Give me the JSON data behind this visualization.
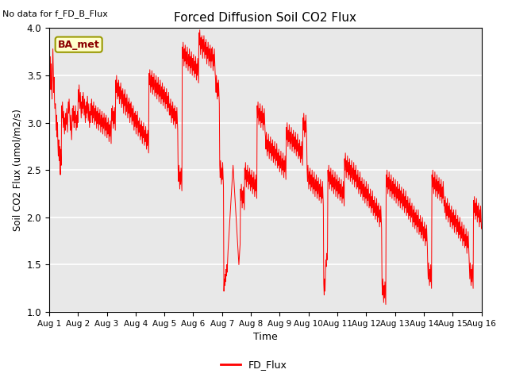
{
  "title": "Forced Diffusion Soil CO2 Flux",
  "xlabel": "Time",
  "ylabel_str": "Soil CO2 Flux (umol/m2/s)",
  "note": "No data for f_FD_B_Flux",
  "legend_label": "FD_Flux",
  "legend_box_label": "BA_met",
  "ylim": [
    1.0,
    4.0
  ],
  "line_color": "#FF0000",
  "background_color": "#E8E8E8",
  "x_tick_labels": [
    "Aug 1",
    "Aug 2",
    "Aug 3",
    "Aug 4",
    "Aug 5",
    "Aug 6",
    "Aug 7",
    "Aug 8",
    "Aug 9",
    "Aug 10",
    "Aug 11",
    "Aug 12",
    "Aug 13",
    "Aug 14",
    "Aug 15",
    "Aug 16"
  ],
  "y_values": [
    3.72,
    3.45,
    3.7,
    3.55,
    3.35,
    3.62,
    3.4,
    3.25,
    3.55,
    3.78,
    3.55,
    3.32,
    3.48,
    3.22,
    3.15,
    3.2,
    3.1,
    2.92,
    3.08,
    2.85,
    3.0,
    2.78,
    2.65,
    2.82,
    2.6,
    2.75,
    2.55,
    2.45,
    2.72,
    2.55,
    3.18,
    3.05,
    3.22,
    3.08,
    2.95,
    3.12,
    3.0,
    2.88,
    3.05,
    2.92,
    3.1,
    2.98,
    3.15,
    3.02,
    2.9,
    3.08,
    3.22,
    3.1,
    3.25,
    3.15,
    3.05,
    2.92,
    3.08,
    2.95,
    2.82,
    3.0,
    3.15,
    3.02,
    3.18,
    3.05,
    2.95,
    3.12,
    3.0,
    3.18,
    3.05,
    2.92,
    3.08,
    2.95,
    3.12,
    3.0,
    3.35,
    3.22,
    3.4,
    3.28,
    3.15,
    3.32,
    3.18,
    3.05,
    3.22,
    3.1,
    3.28,
    3.15,
    3.32,
    3.2,
    3.08,
    3.25,
    3.12,
    3.0,
    3.18,
    3.05,
    3.22,
    3.1,
    3.28,
    3.15,
    3.02,
    3.2,
    3.08,
    2.95,
    3.12,
    3.0,
    3.2,
    3.08,
    3.25,
    3.12,
    3.0,
    3.18,
    3.05,
    3.22,
    3.1,
    2.98,
    3.15,
    3.02,
    3.18,
    3.06,
    2.94,
    3.12,
    2.99,
    3.16,
    3.04,
    2.92,
    3.1,
    2.98,
    3.14,
    3.02,
    2.9,
    3.08,
    2.96,
    3.12,
    3.0,
    2.88,
    3.05,
    2.94,
    3.1,
    2.98,
    2.86,
    3.05,
    2.92,
    3.08,
    2.96,
    2.84,
    3.0,
    2.88,
    3.05,
    2.92,
    2.8,
    2.98,
    2.86,
    3.02,
    2.9,
    2.78,
    3.15,
    3.02,
    3.18,
    3.06,
    2.94,
    3.12,
    2.99,
    3.16,
    3.04,
    2.92,
    3.45,
    3.32,
    3.5,
    3.38,
    3.25,
    3.42,
    3.28,
    3.45,
    3.32,
    3.2,
    3.38,
    3.25,
    3.42,
    3.28,
    3.16,
    3.34,
    3.2,
    3.36,
    3.24,
    3.1,
    3.3,
    3.18,
    3.35,
    3.22,
    3.08,
    3.26,
    3.12,
    3.3,
    3.18,
    3.05,
    3.22,
    3.1,
    3.26,
    3.14,
    3.0,
    3.2,
    3.06,
    3.22,
    3.1,
    2.98,
    3.15,
    3.02,
    3.18,
    3.05,
    2.92,
    3.1,
    2.96,
    3.12,
    3.0,
    2.88,
    3.08,
    2.95,
    3.12,
    2.98,
    2.86,
    3.02,
    2.9,
    3.05,
    2.94,
    2.82,
    2.98,
    2.86,
    3.02,
    2.9,
    2.78,
    2.96,
    2.84,
    3.0,
    2.88,
    2.76,
    2.92,
    2.8,
    2.96,
    2.84,
    2.72,
    2.88,
    2.76,
    2.92,
    2.8,
    2.68,
    3.52,
    3.4,
    3.56,
    3.44,
    3.32,
    3.5,
    3.38,
    3.55,
    3.42,
    3.3,
    3.48,
    3.35,
    3.52,
    3.4,
    3.28,
    3.45,
    3.32,
    3.5,
    3.38,
    3.25,
    3.42,
    3.3,
    3.48,
    3.35,
    3.22,
    3.4,
    3.28,
    3.45,
    3.32,
    3.2,
    3.38,
    3.25,
    3.42,
    3.3,
    3.18,
    3.35,
    3.22,
    3.38,
    3.26,
    3.15,
    3.32,
    3.2,
    3.36,
    3.24,
    3.12,
    3.28,
    3.16,
    3.32,
    3.2,
    3.08,
    3.2,
    3.08,
    3.25,
    3.12,
    3.0,
    3.18,
    3.05,
    3.22,
    3.1,
    2.98,
    3.15,
    3.02,
    3.18,
    3.06,
    2.94,
    3.12,
    2.99,
    3.16,
    3.04,
    2.92,
    2.5,
    2.38,
    2.55,
    2.42,
    2.3,
    2.48,
    2.35,
    2.52,
    2.4,
    2.28,
    3.8,
    3.68,
    3.85,
    3.72,
    3.6,
    3.78,
    3.65,
    3.82,
    3.7,
    3.58,
    3.75,
    3.62,
    3.8,
    3.68,
    3.55,
    3.72,
    3.6,
    3.78,
    3.65,
    3.52,
    3.7,
    3.58,
    3.75,
    3.62,
    3.5,
    3.68,
    3.55,
    3.72,
    3.6,
    3.48,
    3.65,
    3.52,
    3.7,
    3.58,
    3.45,
    3.62,
    3.5,
    3.68,
    3.55,
    3.42,
    3.95,
    3.82,
    3.98,
    3.85,
    3.72,
    3.9,
    3.78,
    3.92,
    3.8,
    3.68,
    3.88,
    3.75,
    3.92,
    3.8,
    3.68,
    3.85,
    3.72,
    3.88,
    3.75,
    3.62,
    3.8,
    3.68,
    3.85,
    3.72,
    3.6,
    3.78,
    3.65,
    3.82,
    3.7,
    3.58,
    3.78,
    3.65,
    3.8,
    3.68,
    3.55,
    3.72,
    3.6,
    3.78,
    3.65,
    3.52,
    3.45,
    3.32,
    3.5,
    3.38,
    3.25,
    3.42,
    3.28,
    3.45,
    3.32,
    3.2,
    2.55,
    2.42,
    2.6,
    2.48,
    2.35,
    2.52,
    2.4,
    2.58,
    2.45,
    2.32,
    1.22,
    1.35,
    1.28,
    1.4,
    1.32,
    1.45,
    1.38,
    1.5,
    1.42,
    1.55,
    1.65,
    1.72,
    1.8,
    1.88,
    1.95,
    2.02,
    2.1,
    2.18,
    2.25,
    2.32,
    2.4,
    2.48,
    2.55,
    2.48,
    2.4,
    2.32,
    2.25,
    2.18,
    2.1,
    2.02,
    1.95,
    1.88,
    1.8,
    1.72,
    1.65,
    1.58,
    1.5,
    1.58,
    1.65,
    1.72,
    2.3,
    2.18,
    2.35,
    2.22,
    2.1,
    2.28,
    2.15,
    2.32,
    2.2,
    2.08,
    2.52,
    2.4,
    2.58,
    2.45,
    2.32,
    2.5,
    2.38,
    2.55,
    2.42,
    2.3,
    2.48,
    2.35,
    2.52,
    2.4,
    2.28,
    2.45,
    2.32,
    2.5,
    2.38,
    2.25,
    2.42,
    2.3,
    2.48,
    2.35,
    2.22,
    2.4,
    2.28,
    2.45,
    2.32,
    2.2,
    3.18,
    3.05,
    3.22,
    3.1,
    2.98,
    3.15,
    3.02,
    3.2,
    3.08,
    2.95,
    3.12,
    3.0,
    3.18,
    3.05,
    2.92,
    3.1,
    2.98,
    3.15,
    3.02,
    2.9,
    2.85,
    2.72,
    2.9,
    2.78,
    2.65,
    2.82,
    2.7,
    2.88,
    2.75,
    2.62,
    2.8,
    2.68,
    2.85,
    2.72,
    2.6,
    2.78,
    2.65,
    2.82,
    2.7,
    2.58,
    2.75,
    2.62,
    2.8,
    2.68,
    2.55,
    2.72,
    2.6,
    2.78,
    2.65,
    2.52,
    2.68,
    2.55,
    2.72,
    2.6,
    2.48,
    2.65,
    2.52,
    2.7,
    2.58,
    2.45,
    2.62,
    2.5,
    2.68,
    2.55,
    2.42,
    2.6,
    2.48,
    2.65,
    2.52,
    2.4,
    2.95,
    2.82,
    3.0,
    2.88,
    2.75,
    2.92,
    2.8,
    2.98,
    2.85,
    2.72,
    2.9,
    2.78,
    2.95,
    2.82,
    2.7,
    2.88,
    2.75,
    2.92,
    2.8,
    2.68,
    2.85,
    2.72,
    2.9,
    2.78,
    2.65,
    2.82,
    2.7,
    2.88,
    2.75,
    2.62,
    2.78,
    2.65,
    2.82,
    2.7,
    2.58,
    2.75,
    2.62,
    2.8,
    2.68,
    2.55,
    3.05,
    2.92,
    3.1,
    2.98,
    2.85,
    3.02,
    2.9,
    3.08,
    2.95,
    2.82,
    2.5,
    2.38,
    2.55,
    2.42,
    2.3,
    2.48,
    2.35,
    2.52,
    2.4,
    2.28,
    2.45,
    2.32,
    2.5,
    2.38,
    2.25,
    2.42,
    2.3,
    2.48,
    2.35,
    2.22,
    2.4,
    2.28,
    2.45,
    2.32,
    2.2,
    2.38,
    2.25,
    2.42,
    2.3,
    2.18,
    2.35,
    2.22,
    2.4,
    2.28,
    2.15,
    2.32,
    2.2,
    2.38,
    2.25,
    2.12,
    1.3,
    1.18,
    1.35,
    1.22,
    1.42,
    1.55,
    1.48,
    1.62,
    1.55,
    1.68,
    2.5,
    2.38,
    2.55,
    2.42,
    2.3,
    2.48,
    2.35,
    2.52,
    2.4,
    2.28,
    2.45,
    2.32,
    2.5,
    2.38,
    2.25,
    2.42,
    2.3,
    2.48,
    2.35,
    2.22,
    2.4,
    2.28,
    2.45,
    2.32,
    2.2,
    2.38,
    2.25,
    2.42,
    2.3,
    2.18,
    2.35,
    2.22,
    2.4,
    2.28,
    2.15,
    2.32,
    2.2,
    2.38,
    2.25,
    2.12,
    2.62,
    2.5,
    2.68,
    2.55,
    2.42,
    2.6,
    2.48,
    2.65,
    2.52,
    2.4,
    2.58,
    2.45,
    2.62,
    2.5,
    2.38,
    2.55,
    2.42,
    2.6,
    2.48,
    2.35,
    2.52,
    2.4,
    2.58,
    2.45,
    2.32,
    2.5,
    2.38,
    2.55,
    2.42,
    2.3,
    2.45,
    2.32,
    2.5,
    2.38,
    2.25,
    2.42,
    2.3,
    2.48,
    2.35,
    2.22,
    2.38,
    2.25,
    2.42,
    2.3,
    2.18,
    2.35,
    2.22,
    2.4,
    2.28,
    2.15,
    2.32,
    2.2,
    2.38,
    2.25,
    2.12,
    2.3,
    2.18,
    2.35,
    2.22,
    2.1,
    2.25,
    2.12,
    2.3,
    2.18,
    2.05,
    2.22,
    2.1,
    2.28,
    2.15,
    2.02,
    2.18,
    2.05,
    2.22,
    2.1,
    1.98,
    2.15,
    2.02,
    2.2,
    2.08,
    1.95,
    2.12,
    2.0,
    2.15,
    2.02,
    1.9,
    2.08,
    1.95,
    2.12,
    2.0,
    1.88,
    1.3,
    1.18,
    1.35,
    1.22,
    1.1,
    1.28,
    1.15,
    1.32,
    1.2,
    1.08,
    2.45,
    2.32,
    2.5,
    2.38,
    2.25,
    2.42,
    2.3,
    2.48,
    2.35,
    2.22,
    2.4,
    2.28,
    2.45,
    2.32,
    2.2,
    2.38,
    2.25,
    2.42,
    2.3,
    2.18,
    2.35,
    2.22,
    2.4,
    2.28,
    2.15,
    2.32,
    2.2,
    2.38,
    2.25,
    2.12,
    2.3,
    2.18,
    2.35,
    2.22,
    2.1,
    2.28,
    2.15,
    2.32,
    2.2,
    2.08,
    2.25,
    2.12,
    2.3,
    2.18,
    2.05,
    2.22,
    2.1,
    2.28,
    2.15,
    2.02,
    2.18,
    2.05,
    2.22,
    2.1,
    1.98,
    2.15,
    2.02,
    2.2,
    2.08,
    1.95,
    2.12,
    2.0,
    2.15,
    2.02,
    1.9,
    2.08,
    1.95,
    2.12,
    2.0,
    1.88,
    2.05,
    1.92,
    2.08,
    1.96,
    1.84,
    2.02,
    1.9,
    2.08,
    1.95,
    1.82,
    1.98,
    1.85,
    2.02,
    1.9,
    1.78,
    1.95,
    1.82,
    2.0,
    1.88,
    1.75,
    1.9,
    1.78,
    1.95,
    1.82,
    1.7,
    1.88,
    1.75,
    1.92,
    1.8,
    1.68,
    1.48,
    1.35,
    1.52,
    1.4,
    1.28,
    1.45,
    1.32,
    1.5,
    1.38,
    1.25,
    2.45,
    2.32,
    2.5,
    2.38,
    2.25,
    2.42,
    2.3,
    2.48,
    2.35,
    2.22,
    2.4,
    2.28,
    2.45,
    2.32,
    2.2,
    2.38,
    2.25,
    2.42,
    2.3,
    2.18,
    2.35,
    2.22,
    2.4,
    2.28,
    2.15,
    2.32,
    2.2,
    2.38,
    2.25,
    2.12,
    2.18,
    2.05,
    2.22,
    2.1,
    1.98,
    2.15,
    2.02,
    2.2,
    2.08,
    1.95,
    2.12,
    2.0,
    2.15,
    2.02,
    1.9,
    2.08,
    1.95,
    2.12,
    2.0,
    1.88,
    2.05,
    1.92,
    2.08,
    1.96,
    1.84,
    2.02,
    1.9,
    2.08,
    1.95,
    1.82,
    1.98,
    1.85,
    2.02,
    1.9,
    1.78,
    1.95,
    1.82,
    2.0,
    1.88,
    1.75,
    1.9,
    1.78,
    1.95,
    1.82,
    1.7,
    1.88,
    1.75,
    1.92,
    1.8,
    1.68,
    1.82,
    1.7,
    1.88,
    1.75,
    1.62,
    1.8,
    1.68,
    1.85,
    1.72,
    1.6,
    1.48,
    1.35,
    1.52,
    1.4,
    1.28,
    1.45,
    1.32,
    1.5,
    1.38,
    1.25,
    2.18,
    2.05,
    2.22,
    2.1,
    1.98,
    2.15,
    2.02,
    2.2,
    2.08,
    1.95,
    2.12,
    2.0,
    2.15,
    2.02,
    1.9,
    2.08,
    1.95,
    2.12,
    2.0,
    1.88
  ]
}
